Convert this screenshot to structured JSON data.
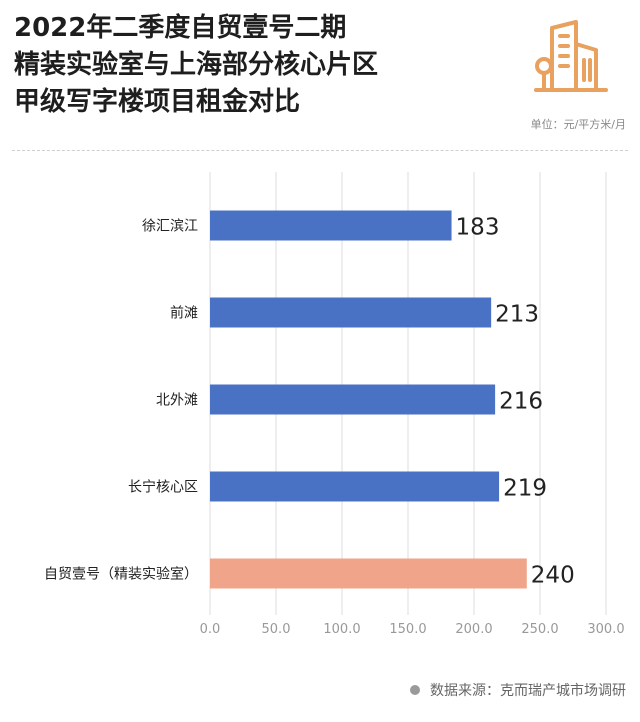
{
  "title_lines": [
    "2022年二季度自贸壹号二期",
    "精装实验室与上海部分核心片区",
    "甲级写字楼项目租金对比"
  ],
  "unit": "单位：元/平方米/月",
  "source": "数据来源：克而瑞产城市场调研",
  "logo_icon": "building-icon",
  "colors": {
    "bar": "#4a72c4",
    "highlight": "#f0a58a",
    "logo": "#e8a15e",
    "grid": "#dcdcdc"
  },
  "chart_data": {
    "type": "bar",
    "orientation": "horizontal",
    "categories": [
      "徐汇滨江",
      "前滩",
      "北外滩",
      "长宁核心区",
      "自贸壹号（精装实验室）"
    ],
    "values": [
      183,
      213,
      216,
      219,
      240
    ],
    "value_labels": [
      "183",
      "213",
      "216",
      "219",
      "240"
    ],
    "highlight_index": 4,
    "xlim": [
      0,
      300
    ],
    "xticks": [
      "0.0",
      "50.0",
      "100.0",
      "150.0",
      "200.0",
      "250.0",
      "300.0"
    ],
    "xlabel": "",
    "ylabel": "",
    "grid": true
  }
}
